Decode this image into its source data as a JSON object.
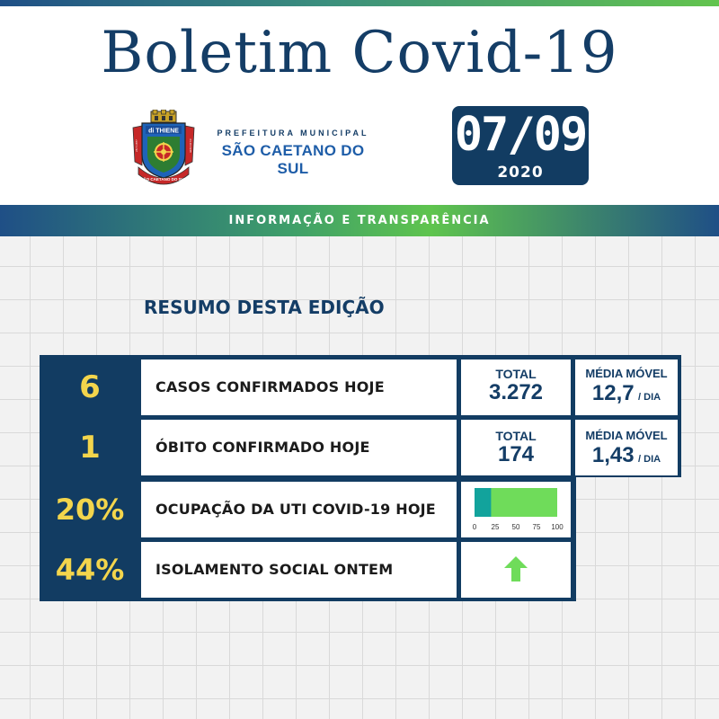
{
  "header": {
    "title": "Boletim Covid-19",
    "prefeitura_line": "PREFEITURA MUNICIPAL",
    "city": "SÃO CAETANO DO SUL",
    "date": "07/09",
    "year": "2020",
    "banner": "INFORMAÇÃO E TRANSPARÊNCIA"
  },
  "crest": {
    "motto": "di THIENE",
    "city_band": "SÃO CAETANO DO SUL",
    "date_left": "28-7-1877",
    "date_right": "24-10-1948"
  },
  "colors": {
    "navy": "#123c62",
    "yellow": "#f3d54c",
    "green": "#6fdc5a",
    "teal": "#12a39c",
    "blue": "#1e5da8"
  },
  "summary": {
    "heading": "RESUMO DESTA EDIÇÃO",
    "rows": [
      {
        "number": "6",
        "label": "CASOS CONFIRMADOS HOJE",
        "total_label": "TOTAL",
        "total_value": "3.272",
        "media_label": "MÉDIA MÓVEL",
        "media_value": "12,7",
        "media_unit": "/ DIA"
      },
      {
        "number": "1",
        "label": "ÓBITO CONFIRMADO HOJE",
        "total_label": "TOTAL",
        "total_value": "174",
        "media_label": "MÉDIA MÓVEL",
        "media_value": "1,43",
        "media_unit": "/ DIA"
      },
      {
        "number": "20%",
        "label": "OCUPAÇÃO DA UTI COVID-19 HOJE",
        "bar_percent": 20,
        "bar_ticks": [
          "0",
          "25",
          "50",
          "75",
          "100"
        ]
      },
      {
        "number": "44%",
        "label": "ISOLAMENTO SOCIAL ONTEM",
        "trend": "up-arrow-icon"
      }
    ]
  }
}
